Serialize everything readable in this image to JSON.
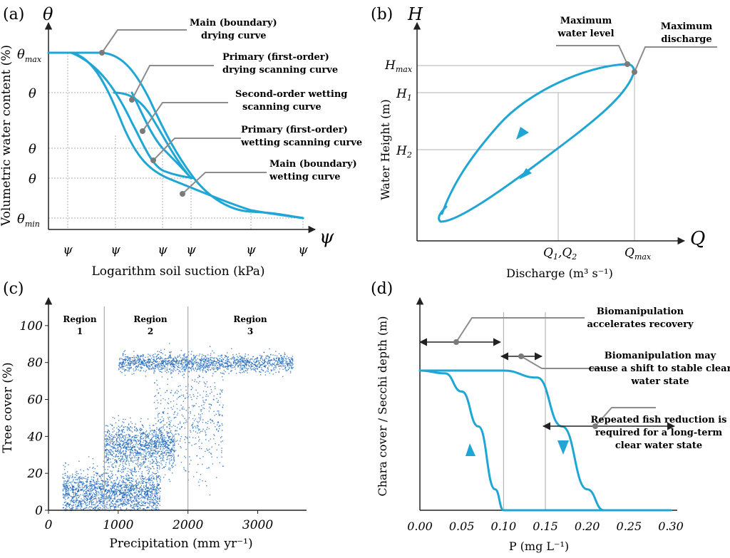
{
  "colors": {
    "curve": "#1fa6d4",
    "axis": "#222222",
    "grid": "#a8a8a8",
    "leader": "#8c8c8c",
    "point": "#7a7a7a",
    "scatter": "#1763b8"
  },
  "panel_a": {
    "label": "(a)",
    "y_symbol": "θ",
    "x_symbol": "ψ",
    "ylabel": "Volumetric water content (%)",
    "xlabel": "Logarithm soil suction (kPa)",
    "y_ticks": [
      "θ",
      "θ",
      "θ",
      "θ"
    ],
    "y_tick_max": "θ",
    "y_tick_max_sub": "max",
    "y_tick_min": "θ",
    "y_tick_min_sub": "min",
    "x_ticks": [
      "ψ",
      "ψ",
      "ψ",
      "ψ",
      "ψ",
      "ψ"
    ],
    "annotations": [
      {
        "line1": "Main (boundary)",
        "line2": "drying curve"
      },
      {
        "line1": "Primary (first-order)",
        "line2": "drying scanning curve"
      },
      {
        "line1": "Second-order wetting",
        "line2": "scanning curve"
      },
      {
        "line1": "Primary (first-order)",
        "line2": "wetting scanning curve"
      },
      {
        "line1": "Main (boundary)",
        "line2": "wetting curve"
      }
    ]
  },
  "panel_b": {
    "label": "(b)",
    "y_symbol": "H",
    "x_symbol": "Q",
    "ylabel": "Water Height (m)",
    "xlabel": "Discharge (m³ s⁻¹)",
    "y_ticks": [
      {
        "main": "H",
        "sub": "max"
      },
      {
        "main": "H",
        "sub": "1"
      },
      {
        "main": "H",
        "sub": "2"
      }
    ],
    "x_ticks": [
      {
        "main": "Q",
        "sub": "1"
      },
      {
        "main": ",Q",
        "sub": "2"
      },
      {
        "main": "Q",
        "sub": "max"
      }
    ],
    "annotations": [
      {
        "line1": "Maximum",
        "line2": "water level"
      },
      {
        "line1": "Maximum",
        "line2": "discharge"
      }
    ]
  },
  "panel_c": {
    "label": "(c)",
    "ylabel": "Tree cover (%)",
    "xlabel": "Precipitation (mm yr⁻¹)",
    "regions": [
      {
        "line1": "Region",
        "line2": "1"
      },
      {
        "line1": "Region",
        "line2": "2"
      },
      {
        "line1": "Region",
        "line2": "3"
      }
    ]
  },
  "panel_d": {
    "label": "(d)",
    "ylabel": "Chara cover / Secchi depth (m)",
    "xlabel": "P (mg L⁻¹)",
    "annotations": [
      {
        "line1": "Biomanipulation",
        "line2": "accelerates recovery"
      },
      {
        "line1": "Biomanipulation may",
        "line2": "cause a shift to stable clear",
        "line3": "water state"
      },
      {
        "line1": "Repeated fish reduction is",
        "line2": "required for a long-term",
        "line3": "clear water state"
      }
    ]
  },
  "chart_data": [
    {
      "type": "line",
      "panel": "a",
      "title": "",
      "xlabel": "Logarithm soil suction (kPa)",
      "ylabel": "Volumetric water content (%)",
      "series": [
        {
          "name": "Main (boundary) drying curve"
        },
        {
          "name": "Primary (first-order) drying scanning curve"
        },
        {
          "name": "Second-order wetting scanning curve"
        },
        {
          "name": "Primary (first-order) wetting scanning curve"
        },
        {
          "name": "Main (boundary) wetting curve"
        }
      ]
    },
    {
      "type": "line",
      "panel": "b",
      "title": "",
      "xlabel": "Discharge (m³ s⁻¹)",
      "ylabel": "Water Height (m)",
      "series": [
        {
          "name": "hysteresis loop"
        }
      ]
    },
    {
      "type": "scatter",
      "panel": "c",
      "title": "",
      "xlabel": "Precipitation (mm yr⁻¹)",
      "ylabel": "Tree cover (%)",
      "x_ticks": [
        0,
        1000,
        2000,
        3000
      ],
      "y_ticks": [
        0,
        20,
        40,
        60,
        80,
        100
      ],
      "xlim": [
        0,
        3700
      ],
      "ylim": [
        0,
        115
      ],
      "region_boundaries": [
        800,
        2000
      ],
      "clusters": [
        {
          "x_range": [
            200,
            1600
          ],
          "y_center": 10,
          "y_spread": 12
        },
        {
          "x_range": [
            800,
            1800
          ],
          "y_center": 35,
          "y_spread": 12
        },
        {
          "x_range": [
            1000,
            3500
          ],
          "y_center": 80,
          "y_spread": 5
        },
        {
          "x_range": [
            1500,
            2500
          ],
          "y_center": 50,
          "y_spread": 30
        }
      ]
    },
    {
      "type": "line",
      "panel": "d",
      "title": "",
      "xlabel": "P (mg L⁻¹)",
      "ylabel": "Chara cover / Secchi depth (m)",
      "x_ticks": [
        "0.00",
        "0.05",
        "0.10",
        "0.15",
        "0.20",
        "0.25",
        "0.30"
      ],
      "xlim": [
        0,
        0.3
      ],
      "reference_lines": [
        0.1,
        0.15
      ],
      "series": [
        {
          "name": "forward",
          "x": [
            0.0,
            0.1,
            0.14,
            0.17,
            0.2,
            0.22
          ],
          "y": [
            1,
            1,
            0.95,
            0.6,
            0.15,
            0
          ]
        },
        {
          "name": "backward",
          "x": [
            0.3,
            0.1,
            0.09,
            0.07,
            0.05,
            0.03,
            0.0
          ],
          "y": [
            0,
            0,
            0.15,
            0.6,
            0.85,
            0.98,
            1
          ]
        }
      ]
    }
  ]
}
